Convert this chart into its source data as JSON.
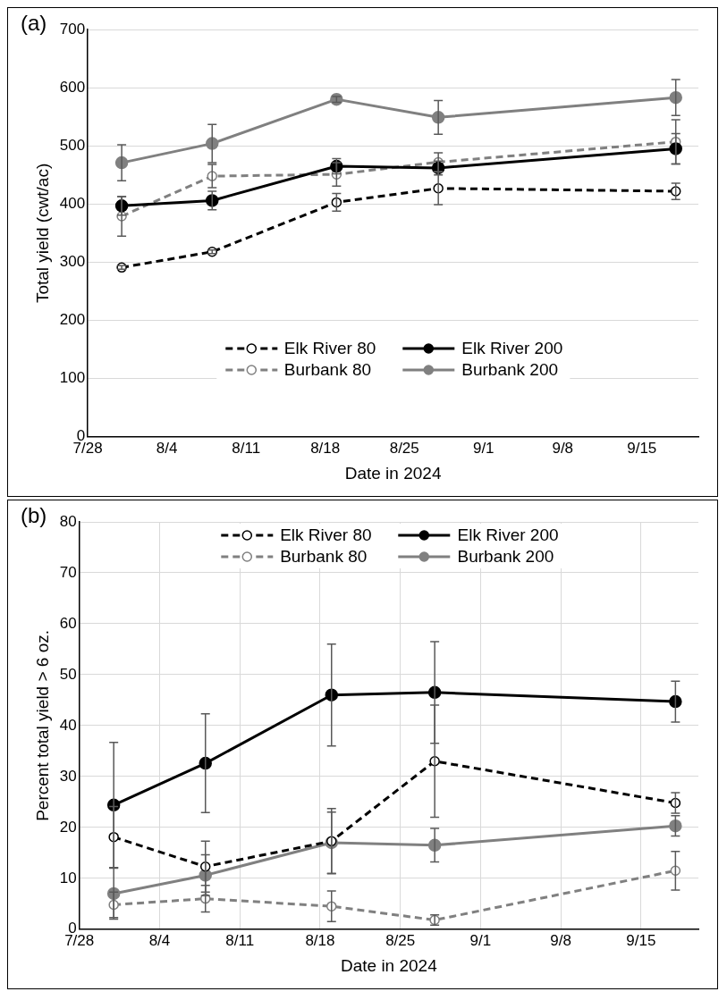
{
  "chart_data": [
    {
      "type": "line",
      "title": "(a)",
      "xlabel": "Date in 2024",
      "ylabel": "Total yield (cwt/ac)",
      "x": [
        "2024-07-31",
        "2024-08-08",
        "2024-08-19",
        "2024-08-28",
        "2024-09-18"
      ],
      "xlim": [
        "2024-07-28",
        "2024-09-20"
      ],
      "xticks": [
        {
          "value": "2024-07-28",
          "label": "7/28"
        },
        {
          "value": "2024-08-04",
          "label": "8/4"
        },
        {
          "value": "2024-08-11",
          "label": "8/11"
        },
        {
          "value": "2024-08-18",
          "label": "8/18"
        },
        {
          "value": "2024-08-25",
          "label": "8/25"
        },
        {
          "value": "2024-09-01",
          "label": "9/1"
        },
        {
          "value": "2024-09-08",
          "label": "9/8"
        },
        {
          "value": "2024-09-15",
          "label": "9/15"
        }
      ],
      "ylim": [
        0,
        700
      ],
      "yticks": [
        0,
        100,
        200,
        300,
        400,
        500,
        600,
        700
      ],
      "grid": "y",
      "legend": "bottom",
      "marker": "circle",
      "series": [
        {
          "name": "Elk River 80",
          "color": "#000000",
          "line_style": "dashed",
          "values": [
            291,
            318,
            403,
            427,
            422
          ],
          "errors": [
            3,
            3,
            15,
            28,
            14
          ]
        },
        {
          "name": "Elk River 200",
          "color": "#000000",
          "line_style": "solid",
          "values": [
            397,
            406,
            465,
            462,
            495
          ],
          "errors": [
            16,
            16,
            13,
            12,
            26
          ]
        },
        {
          "name": "Burbank 80",
          "color": "#808080",
          "line_style": "dashed",
          "values": [
            379,
            448,
            451,
            472,
            507
          ],
          "errors": [
            34,
            20,
            20,
            16,
            38
          ]
        },
        {
          "name": "Burbank 200",
          "color": "#808080",
          "line_style": "solid",
          "values": [
            471,
            504,
            580,
            549,
            583
          ],
          "errors": [
            31,
            33,
            5,
            29,
            31
          ]
        }
      ]
    },
    {
      "type": "line",
      "title": "(b)",
      "xlabel": "Date in 2024",
      "ylabel": "Percent total yield > 6 oz.",
      "x": [
        "2024-07-31",
        "2024-08-08",
        "2024-08-19",
        "2024-08-28",
        "2024-09-18"
      ],
      "xlim": [
        "2024-07-28",
        "2024-09-20"
      ],
      "xticks": [
        {
          "value": "2024-07-28",
          "label": "7/28"
        },
        {
          "value": "2024-08-04",
          "label": "8/4"
        },
        {
          "value": "2024-08-11",
          "label": "8/11"
        },
        {
          "value": "2024-08-18",
          "label": "8/18"
        },
        {
          "value": "2024-08-25",
          "label": "8/25"
        },
        {
          "value": "2024-09-01",
          "label": "9/1"
        },
        {
          "value": "2024-09-08",
          "label": "9/8"
        },
        {
          "value": "2024-09-15",
          "label": "9/15"
        }
      ],
      "ylim": [
        0,
        80
      ],
      "yticks": [
        0,
        10,
        20,
        30,
        40,
        50,
        60,
        70,
        80
      ],
      "grid": true,
      "legend": "top",
      "marker": "circle",
      "series": [
        {
          "name": "Elk River 80",
          "color": "#000000",
          "line_style": "dashed",
          "values": [
            18.1,
            12.3,
            17.3,
            33,
            24.8
          ],
          "errors": [
            6,
            5,
            6.4,
            11,
            2
          ]
        },
        {
          "name": "Elk River 200",
          "color": "#000000",
          "line_style": "solid",
          "values": [
            24.4,
            32.6,
            46,
            46.5,
            44.7
          ],
          "errors": [
            12.3,
            9.7,
            10,
            10,
            4
          ]
        },
        {
          "name": "Burbank 80",
          "color": "#808080",
          "line_style": "dashed",
          "values": [
            4.8,
            6,
            4.5,
            1.8,
            11.5
          ],
          "errors": [
            2.5,
            2.6,
            3,
            1,
            3.8
          ]
        },
        {
          "name": "Burbank 200",
          "color": "#808080",
          "line_style": "solid",
          "values": [
            7,
            10.6,
            17,
            16.5,
            20.3
          ],
          "errors": [
            5,
            4,
            6,
            3.3,
            2
          ]
        }
      ]
    }
  ]
}
